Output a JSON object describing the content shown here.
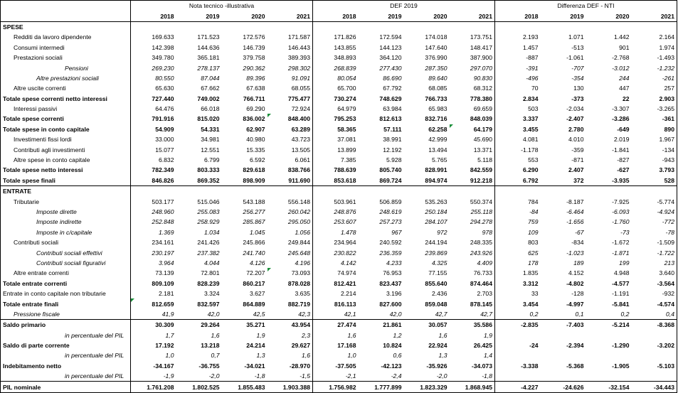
{
  "groups": [
    "Nota tecnico -illustrativa",
    "DEF 2019",
    "Differenza DEF - NTI"
  ],
  "years": [
    "2018",
    "2019",
    "2020",
    "2021"
  ],
  "rows": [
    {
      "label": "SPESE",
      "style": "bold",
      "ind": 0,
      "sep": true,
      "nti": [
        "",
        "",
        "",
        ""
      ],
      "def": [
        "",
        "",
        "",
        ""
      ],
      "diff": [
        "",
        "",
        "",
        ""
      ]
    },
    {
      "label": "Redditi da lavoro dipendente",
      "style": "",
      "ind": 1,
      "nti": [
        "169.633",
        "171.523",
        "172.576",
        "171.587"
      ],
      "def": [
        "171.826",
        "172.594",
        "174.018",
        "173.751"
      ],
      "diff": [
        "2.193",
        "1.071",
        "1.442",
        "2.164"
      ]
    },
    {
      "label": "Consumi intermedi",
      "style": "",
      "ind": 1,
      "nti": [
        "142.398",
        "144.636",
        "146.739",
        "146.443"
      ],
      "def": [
        "143.855",
        "144.123",
        "147.640",
        "148.417"
      ],
      "diff": [
        "1.457",
        "-513",
        "901",
        "1.974"
      ]
    },
    {
      "label": "Prestazioni sociali",
      "style": "",
      "ind": 1,
      "nti": [
        "349.780",
        "365.181",
        "379.758",
        "389.393"
      ],
      "def": [
        "348.893",
        "364.120",
        "376.990",
        "387.900"
      ],
      "diff": [
        "-887",
        "-1.061",
        "-2.768",
        "-1.493"
      ]
    },
    {
      "label": "Pensioni",
      "style": "italic",
      "ind": 3,
      "nti": [
        "269.230",
        "278.137",
        "290.362",
        "298.302"
      ],
      "def": [
        "268.839",
        "277.430",
        "287.350",
        "297.070"
      ],
      "diff": [
        "-391",
        "-707",
        "-3.012",
        "-1.232"
      ]
    },
    {
      "label": "Altre prestazioni sociali",
      "style": "italic",
      "ind": 2,
      "nti": [
        "80.550",
        "87.044",
        "89.396",
        "91.091"
      ],
      "def": [
        "80.054",
        "86.690",
        "89.640",
        "90.830"
      ],
      "diff": [
        "-496",
        "-354",
        "244",
        "-261"
      ]
    },
    {
      "label": "Altre uscite correnti",
      "style": "",
      "ind": 1,
      "nti": [
        "65.630",
        "67.662",
        "67.638",
        "68.055"
      ],
      "def": [
        "65.700",
        "67.792",
        "68.085",
        "68.312"
      ],
      "diff": [
        "70",
        "130",
        "447",
        "257"
      ]
    },
    {
      "label": "Totale spese correnti netto interessi",
      "style": "bold",
      "ind": 0,
      "nti": [
        "727.440",
        "749.002",
        "766.711",
        "775.477"
      ],
      "def": [
        "730.274",
        "748.629",
        "766.733",
        "778.380"
      ],
      "diff": [
        "2.834",
        "-373",
        "22",
        "2.903"
      ]
    },
    {
      "label": "Interessi passivi",
      "style": "",
      "ind": 1,
      "nti": [
        "64.476",
        "66.018",
        "69.290",
        "72.924"
      ],
      "def": [
        "64.979",
        "63.984",
        "65.983",
        "69.659"
      ],
      "diff": [
        "503",
        "-2.034",
        "-3.307",
        "-3.265"
      ]
    },
    {
      "label": "Totale spese correnti",
      "style": "bold",
      "ind": 0,
      "nti": [
        "791.916",
        "815.020",
        "836.002",
        "848.400"
      ],
      "def": [
        "795.253",
        "812.613",
        "832.716",
        "848.039"
      ],
      "diff": [
        "3.337",
        "-2.407",
        "-3.286",
        "-361"
      ]
    },
    {
      "label": "Totale spese in conto capitale",
      "style": "bold",
      "ind": 0,
      "nti": [
        "54.909",
        "54.331",
        "62.907",
        "63.289"
      ],
      "def": [
        "58.365",
        "57.111",
        "62.258",
        "64.179"
      ],
      "diff": [
        "3.455",
        "2.780",
        "-649",
        "890"
      ]
    },
    {
      "label": "Investimenti fissi lordi",
      "style": "",
      "ind": 1,
      "nti": [
        "33.000",
        "34.981",
        "40.980",
        "43.723"
      ],
      "def": [
        "37.081",
        "38.991",
        "42.999",
        "45.690"
      ],
      "diff": [
        "4.081",
        "4.010",
        "2.019",
        "1.967"
      ]
    },
    {
      "label": "Contributi agli investimenti",
      "style": "",
      "ind": 1,
      "nti": [
        "15.077",
        "12.551",
        "15.335",
        "13.505"
      ],
      "def": [
        "13.899",
        "12.192",
        "13.494",
        "13.371"
      ],
      "diff": [
        "-1.178",
        "-359",
        "-1.841",
        "-134"
      ]
    },
    {
      "label": "Altre spese in conto capitale",
      "style": "",
      "ind": 1,
      "nti": [
        "6.832",
        "6.799",
        "6.592",
        "6.061"
      ],
      "def": [
        "7.385",
        "5.928",
        "5.765",
        "5.118"
      ],
      "diff": [
        "553",
        "-871",
        "-827",
        "-943"
      ]
    },
    {
      "label": "Totale spese netto interessi",
      "style": "bold",
      "ind": 0,
      "nti": [
        "782.349",
        "803.333",
        "829.618",
        "838.766"
      ],
      "def": [
        "788.639",
        "805.740",
        "828.991",
        "842.559"
      ],
      "diff": [
        "6.290",
        "2.407",
        "-627",
        "3.793"
      ]
    },
    {
      "label": "Totale spese finali",
      "style": "bold",
      "ind": 0,
      "nti": [
        "846.826",
        "869.352",
        "898.909",
        "911.690"
      ],
      "def": [
        "853.618",
        "869.724",
        "894.974",
        "912.218"
      ],
      "diff": [
        "6.792",
        "372",
        "-3.935",
        "528"
      ]
    },
    {
      "label": "ENTRATE",
      "style": "bold",
      "ind": 0,
      "sep": true,
      "nti": [
        "",
        "",
        "",
        ""
      ],
      "def": [
        "",
        "",
        "",
        ""
      ],
      "diff": [
        "",
        "",
        "",
        ""
      ]
    },
    {
      "label": "Tributarie",
      "style": "",
      "ind": 1,
      "nti": [
        "503.177",
        "515.046",
        "543.188",
        "556.148"
      ],
      "def": [
        "503.961",
        "506.859",
        "535.263",
        "550.374"
      ],
      "diff": [
        "784",
        "-8.187",
        "-7.925",
        "-5.774"
      ]
    },
    {
      "label": "Imposte dirette",
      "style": "italic",
      "ind": 2,
      "nti": [
        "248.960",
        "255.083",
        "256.277",
        "260.042"
      ],
      "def": [
        "248.876",
        "248.619",
        "250.184",
        "255.118"
      ],
      "diff": [
        "-84",
        "-6.464",
        "-6.093",
        "-4.924"
      ]
    },
    {
      "label": "Imposte indirette",
      "style": "italic",
      "ind": 2,
      "nti": [
        "252.848",
        "258.929",
        "285.867",
        "295.050"
      ],
      "def": [
        "253.607",
        "257.273",
        "284.107",
        "294.278"
      ],
      "diff": [
        "759",
        "-1.656",
        "-1.760",
        "-772"
      ]
    },
    {
      "label": "Imposte in c/capitale",
      "style": "italic",
      "ind": 2,
      "nti": [
        "1.369",
        "1.034",
        "1.045",
        "1.056"
      ],
      "def": [
        "1.478",
        "967",
        "972",
        "978"
      ],
      "diff": [
        "109",
        "-67",
        "-73",
        "-78"
      ]
    },
    {
      "label": "Contributi sociali",
      "style": "",
      "ind": 1,
      "nti": [
        "234.161",
        "241.426",
        "245.866",
        "249.844"
      ],
      "def": [
        "234.964",
        "240.592",
        "244.194",
        "248.335"
      ],
      "diff": [
        "803",
        "-834",
        "-1.672",
        "-1.509"
      ]
    },
    {
      "label": "Contributi sociali effettivi",
      "style": "italic",
      "ind": 2,
      "nti": [
        "230.197",
        "237.382",
        "241.740",
        "245.648"
      ],
      "def": [
        "230.822",
        "236.359",
        "239.869",
        "243.926"
      ],
      "diff": [
        "625",
        "-1.023",
        "-1.871",
        "-1.722"
      ]
    },
    {
      "label": "Contributi sociali figurativi",
      "style": "italic",
      "ind": 2,
      "nti": [
        "3.964",
        "4.044",
        "4.126",
        "4.196"
      ],
      "def": [
        "4.142",
        "4.233",
        "4.325",
        "4.409"
      ],
      "diff": [
        "178",
        "189",
        "199",
        "213"
      ]
    },
    {
      "label": "Altre entrate correnti",
      "style": "",
      "ind": 1,
      "nti": [
        "73.139",
        "72.801",
        "72.207",
        "73.093"
      ],
      "def": [
        "74.974",
        "76.953",
        "77.155",
        "76.733"
      ],
      "diff": [
        "1.835",
        "4.152",
        "4.948",
        "3.640"
      ]
    },
    {
      "label": "Totale entrate correnti",
      "style": "bold",
      "ind": 0,
      "nti": [
        "809.109",
        "828.239",
        "860.217",
        "878.028"
      ],
      "def": [
        "812.421",
        "823.437",
        "855.640",
        "874.464"
      ],
      "diff": [
        "3.312",
        "-4.802",
        "-4.577",
        "-3.564"
      ]
    },
    {
      "label": "Entrate in conto capitale non tributarie",
      "style": "",
      "ind": 0,
      "nti": [
        "2.181",
        "3.324",
        "3.627",
        "3.635"
      ],
      "def": [
        "2.214",
        "3.196",
        "2.436",
        "2.703"
      ],
      "diff": [
        "33",
        "-128",
        "-1.191",
        "-932"
      ]
    },
    {
      "label": "Totale entrate finali",
      "style": "bold",
      "ind": 0,
      "nti": [
        "812.659",
        "832.597",
        "864.889",
        "882.719"
      ],
      "def": [
        "816.113",
        "827.600",
        "859.048",
        "878.145"
      ],
      "diff": [
        "3.454",
        "-4.997",
        "-5.841",
        "-4.574"
      ]
    },
    {
      "label": "Pressione fiscale",
      "style": "italic",
      "ind": 1,
      "nti": [
        "41,9",
        "42,0",
        "42,5",
        "42,3"
      ],
      "def": [
        "42,1",
        "42,0",
        "42,7",
        "42,7"
      ],
      "diff": [
        "0,2",
        "0,1",
        "0,2",
        "0,4"
      ]
    },
    {
      "label": "Saldo primario",
      "style": "bold",
      "ind": 0,
      "sep": true,
      "nti": [
        "30.309",
        "29.264",
        "35.271",
        "43.954"
      ],
      "def": [
        "27.474",
        "21.861",
        "30.057",
        "35.586"
      ],
      "diff": [
        "-2.835",
        "-7.403",
        "-5.214",
        "-8.368"
      ]
    },
    {
      "label": "in percentuale del PIL",
      "style": "italic",
      "ind": 3,
      "nti": [
        "1,7",
        "1,6",
        "1,9",
        "2,3"
      ],
      "def": [
        "1,6",
        "1,2",
        "1,6",
        "1,9"
      ],
      "diff": [
        "",
        "",
        "",
        ""
      ]
    },
    {
      "label": "Saldo di parte corrente",
      "style": "bold",
      "ind": 0,
      "nti": [
        "17.192",
        "13.218",
        "24.214",
        "29.627"
      ],
      "def": [
        "17.168",
        "10.824",
        "22.924",
        "26.425"
      ],
      "diff": [
        "-24",
        "-2.394",
        "-1.290",
        "-3.202"
      ]
    },
    {
      "label": "in percentuale del PIL",
      "style": "italic",
      "ind": 3,
      "nti": [
        "1,0",
        "0,7",
        "1,3",
        "1,6"
      ],
      "def": [
        "1,0",
        "0,6",
        "1,3",
        "1,4"
      ],
      "diff": [
        "",
        "",
        "",
        ""
      ]
    },
    {
      "label": "Indebitamento netto",
      "style": "bold",
      "ind": 0,
      "nti": [
        "-34.167",
        "-36.755",
        "-34.021",
        "-28.970"
      ],
      "def": [
        "-37.505",
        "-42.123",
        "-35.926",
        "-34.073"
      ],
      "diff": [
        "-3.338",
        "-5.368",
        "-1.905",
        "-5.103"
      ]
    },
    {
      "label": "in percentuale del PIL",
      "style": "italic",
      "ind": 3,
      "nti": [
        "-1,9",
        "-2,0",
        "-1,8",
        "-1,5"
      ],
      "def": [
        "-2,1",
        "-2,4",
        "-2,0",
        "-1,8"
      ],
      "diff": [
        "",
        "",
        "",
        ""
      ]
    },
    {
      "label": "PIL nominale",
      "style": "bold",
      "ind": 0,
      "sep": true,
      "nti": [
        "1.761.208",
        "1.802.525",
        "1.855.483",
        "1.903.388"
      ],
      "def": [
        "1.756.982",
        "1.777.899",
        "1.823.329",
        "1.868.945"
      ],
      "diff": [
        "-4.227",
        "-24.626",
        "-32.154",
        "-34.443"
      ]
    }
  ]
}
